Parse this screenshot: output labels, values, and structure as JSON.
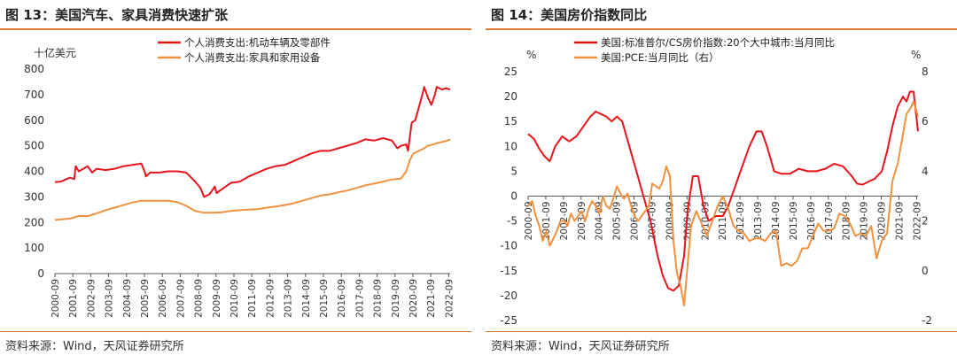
{
  "colors": {
    "accent_orange": "#ED7D31",
    "series_red": "#E8141B",
    "series_orange": "#F0913F",
    "rule": "#E07A30",
    "axis": "#333333"
  },
  "left": {
    "title": "图 13：美国汽车、家具消费快速扩张",
    "source": "资料来源：Wind，天风证券研究所",
    "chart_data": {
      "type": "line",
      "unit_label": "十亿美元",
      "ylim": [
        0,
        800
      ],
      "yticks": [
        0,
        100,
        200,
        300,
        400,
        500,
        600,
        700,
        800
      ],
      "xlim": [
        2000.67,
        2022.75
      ],
      "xtick_labels": [
        "2000-09",
        "2001-09",
        "2002-09",
        "2003-09",
        "2004-09",
        "2005-09",
        "2006-09",
        "2007-09",
        "2008-09",
        "2009-09",
        "2010-09",
        "2011-09",
        "2012-09",
        "2013-09",
        "2014-09",
        "2015-09",
        "2016-09",
        "2017-09",
        "2018-09",
        "2019-09",
        "2020-09",
        "2021-09",
        "2022-09"
      ],
      "legend_position": "top-center",
      "grid": false,
      "series": [
        {
          "name": "个人消费支出:机动车辆及零部件",
          "color": "#E8141B",
          "x": [
            2000.67,
            2001.0,
            2001.5,
            2001.75,
            2001.83,
            2002.0,
            2002.5,
            2002.75,
            2003.0,
            2003.5,
            2004.0,
            2004.5,
            2005.0,
            2005.5,
            2005.7,
            2005.75,
            2006.0,
            2006.5,
            2007.0,
            2007.5,
            2008.0,
            2008.5,
            2008.8,
            2009.0,
            2009.3,
            2009.6,
            2009.7,
            2010.0,
            2010.5,
            2011.0,
            2011.5,
            2012.0,
            2012.5,
            2013.0,
            2013.5,
            2014.0,
            2014.5,
            2015.0,
            2015.5,
            2016.0,
            2016.5,
            2017.0,
            2017.5,
            2018.0,
            2018.5,
            2019.0,
            2019.5,
            2019.8,
            2020.0,
            2020.3,
            2020.4,
            2020.6,
            2020.8,
            2021.0,
            2021.2,
            2021.3,
            2021.5,
            2021.7,
            2021.9,
            2022.0,
            2022.3,
            2022.5,
            2022.75
          ],
          "y": [
            358,
            360,
            375,
            370,
            420,
            400,
            420,
            395,
            410,
            405,
            410,
            420,
            425,
            430,
            395,
            380,
            395,
            395,
            400,
            400,
            395,
            360,
            335,
            300,
            310,
            340,
            315,
            330,
            355,
            360,
            380,
            395,
            410,
            420,
            425,
            440,
            455,
            470,
            480,
            480,
            490,
            500,
            510,
            525,
            520,
            530,
            520,
            490,
            500,
            505,
            480,
            590,
            600,
            650,
            700,
            730,
            690,
            660,
            700,
            730,
            720,
            725,
            720
          ]
        },
        {
          "name": "个人消费支出:家具和家用设备",
          "color": "#F0913F",
          "x": [
            2000.67,
            2001.5,
            2002.0,
            2002.5,
            2003.0,
            2003.5,
            2004.0,
            2004.5,
            2005.0,
            2005.5,
            2006.0,
            2006.5,
            2007.0,
            2007.5,
            2008.0,
            2008.5,
            2009.0,
            2009.5,
            2010.0,
            2010.5,
            2011.0,
            2011.5,
            2012.0,
            2012.5,
            2013.0,
            2013.5,
            2014.0,
            2014.5,
            2015.0,
            2015.5,
            2016.0,
            2016.5,
            2017.0,
            2017.5,
            2018.0,
            2018.5,
            2019.0,
            2019.5,
            2020.0,
            2020.3,
            2020.5,
            2020.7,
            2021.0,
            2021.3,
            2021.5,
            2021.8,
            2022.0,
            2022.5,
            2022.75
          ],
          "y": [
            210,
            215,
            225,
            225,
            235,
            248,
            258,
            268,
            278,
            285,
            285,
            285,
            285,
            280,
            265,
            245,
            238,
            238,
            240,
            245,
            248,
            250,
            252,
            258,
            262,
            268,
            275,
            285,
            295,
            305,
            310,
            318,
            325,
            335,
            345,
            352,
            360,
            368,
            372,
            400,
            445,
            470,
            480,
            490,
            500,
            505,
            510,
            518,
            525
          ]
        }
      ]
    }
  },
  "right": {
    "title": "图 14：美国房价指数同比",
    "source": "资料来源：Wind，天风证券研究所",
    "chart_data": {
      "type": "line",
      "left_unit": "%",
      "right_unit": "%",
      "ylim": [
        -25,
        25
      ],
      "yticks": [
        -25,
        -20,
        -15,
        -10,
        -5,
        0,
        5,
        10,
        15,
        20,
        25
      ],
      "y2lim": [
        -2,
        8
      ],
      "y2ticks": [
        -2,
        0,
        2,
        4,
        6,
        8
      ],
      "xlim": [
        2000.67,
        2022.75
      ],
      "xtick_labels": [
        "2000-09",
        "2001-09",
        "2002-09",
        "2003-09",
        "2004-09",
        "2005-09",
        "2006-09",
        "2007-09",
        "2008-09",
        "2009-09",
        "2010-09",
        "2011-09",
        "2012-09",
        "2013-09",
        "2014-09",
        "2015-09",
        "2016-09",
        "2017-09",
        "2018-09",
        "2019-09",
        "2020-09",
        "2021-09",
        "2022-09"
      ],
      "legend_position": "top-left",
      "grid": false,
      "series": [
        {
          "name": "美国:标准普尔/CS房价指数:20个大中城市:当月同比",
          "color": "#E8141B",
          "axis": "left",
          "x": [
            2000.67,
            2001.0,
            2001.3,
            2001.6,
            2001.9,
            2002.2,
            2002.6,
            2003.0,
            2003.4,
            2003.8,
            2004.2,
            2004.5,
            2004.8,
            2005.1,
            2005.4,
            2005.7,
            2006.0,
            2006.4,
            2006.8,
            2007.2,
            2007.6,
            2008.0,
            2008.3,
            2008.6,
            2008.9,
            2009.2,
            2009.5,
            2009.7,
            2010.0,
            2010.3,
            2010.6,
            2010.9,
            2011.3,
            2011.7,
            2012.0,
            2012.3,
            2012.6,
            2012.9,
            2013.2,
            2013.6,
            2013.9,
            2014.2,
            2014.6,
            2015.0,
            2015.5,
            2016.0,
            2016.5,
            2017.0,
            2017.5,
            2018.0,
            2018.5,
            2019.0,
            2019.3,
            2019.6,
            2020.0,
            2020.3,
            2020.7,
            2021.0,
            2021.3,
            2021.6,
            2021.9,
            2022.1,
            2022.3,
            2022.5,
            2022.75
          ],
          "y": [
            12.5,
            11.5,
            9.5,
            8,
            7,
            10,
            12,
            11,
            12,
            14,
            16,
            17,
            16.5,
            16,
            15,
            16,
            15,
            10,
            5,
            0,
            -5,
            -12,
            -16,
            -18.5,
            -19,
            -18,
            -12,
            -3,
            4,
            4,
            -2,
            -5,
            -4,
            -4,
            -2,
            1,
            4,
            7,
            10,
            13,
            13,
            10,
            5,
            4.5,
            4.5,
            5.5,
            5,
            5,
            5.5,
            6.5,
            6,
            4,
            2.5,
            2.3,
            3,
            3.5,
            5,
            9,
            14,
            18,
            20,
            19,
            21,
            21,
            13
          ]
        },
        {
          "name": "美国:PCE:当月同比（右）",
          "color": "#F0913F",
          "axis": "right",
          "x": [
            2000.67,
            2000.9,
            2001.1,
            2001.3,
            2001.5,
            2001.7,
            2001.9,
            2002.1,
            2002.3,
            2002.5,
            2002.7,
            2002.9,
            2003.1,
            2003.3,
            2003.5,
            2003.7,
            2003.9,
            2004.1,
            2004.3,
            2004.5,
            2004.7,
            2004.9,
            2005.1,
            2005.3,
            2005.5,
            2005.7,
            2005.9,
            2006.1,
            2006.3,
            2006.5,
            2006.7,
            2006.9,
            2007.1,
            2007.3,
            2007.5,
            2007.7,
            2007.9,
            2008.1,
            2008.3,
            2008.5,
            2008.7,
            2008.9,
            2009.1,
            2009.3,
            2009.5,
            2009.7,
            2009.9,
            2010.2,
            2010.5,
            2010.8,
            2011.1,
            2011.4,
            2011.7,
            2012.0,
            2012.3,
            2012.6,
            2012.9,
            2013.2,
            2013.5,
            2013.8,
            2014.1,
            2014.4,
            2014.7,
            2015.0,
            2015.3,
            2015.6,
            2015.9,
            2016.2,
            2016.5,
            2016.8,
            2017.1,
            2017.4,
            2017.7,
            2018.0,
            2018.3,
            2018.6,
            2018.9,
            2019.2,
            2019.5,
            2019.8,
            2020.1,
            2020.4,
            2020.7,
            2021.0,
            2021.3,
            2021.6,
            2021.9,
            2022.1,
            2022.3,
            2022.5,
            2022.75
          ],
          "y": [
            2.6,
            2.8,
            2.2,
            1.8,
            1.2,
            1.6,
            1.0,
            1.3,
            1.6,
            2.0,
            2.0,
            1.8,
            2.3,
            2.0,
            2.2,
            2.4,
            2.0,
            2.5,
            2.8,
            2.6,
            2.3,
            3.0,
            2.6,
            2.5,
            2.9,
            3.4,
            3.1,
            2.9,
            3.1,
            2.6,
            2.2,
            2.0,
            2.2,
            2.4,
            2.6,
            3.5,
            3.4,
            3.3,
            3.6,
            4.2,
            3.8,
            1.2,
            -0.1,
            -0.6,
            -1.4,
            0.2,
            1.8,
            2.4,
            1.9,
            1.4,
            2.0,
            2.6,
            3.0,
            2.5,
            1.8,
            1.6,
            1.5,
            1.2,
            1.3,
            1.3,
            1.2,
            1.5,
            1.6,
            0.2,
            0.3,
            0.2,
            0.4,
            0.9,
            0.9,
            1.4,
            1.9,
            1.6,
            1.6,
            1.7,
            2.3,
            2.2,
            1.9,
            1.4,
            1.5,
            1.4,
            1.8,
            0.5,
            1.2,
            1.5,
            3.6,
            4.3,
            5.5,
            6.3,
            6.5,
            6.8,
            6.2
          ]
        }
      ]
    }
  }
}
